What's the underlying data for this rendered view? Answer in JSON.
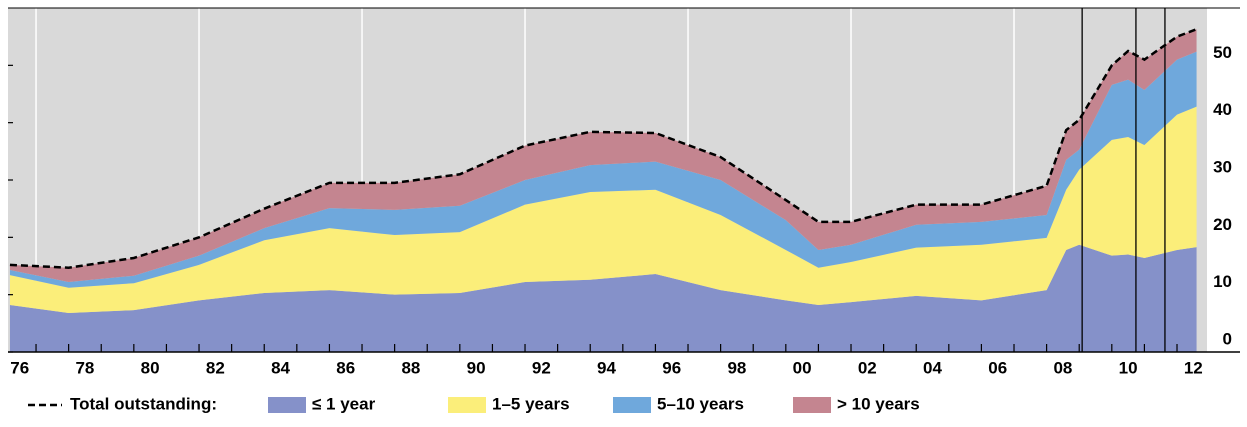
{
  "chart_data": {
    "type": "stacked-area",
    "x": [
      1976.2,
      1978,
      1980,
      1982,
      1984,
      1986,
      1988,
      1990,
      1992,
      1994,
      1996,
      1998,
      2000,
      2001,
      2002,
      2004,
      2006,
      2008,
      2008.6,
      2009,
      2010,
      2010.5,
      2011,
      2012,
      2012.6
    ],
    "series": [
      {
        "name": "≤ 1 year",
        "color": "#8591c9",
        "values": [
          8.2,
          6.8,
          7.3,
          9,
          10.3,
          10.8,
          10,
          10.3,
          12.2,
          12.6,
          13.6,
          10.8,
          9,
          8.2,
          8.7,
          9.8,
          9,
          10.8,
          17.8,
          18.7,
          16.8,
          17,
          16.4,
          17.8,
          18.3
        ]
      },
      {
        "name": "1–5 years",
        "color": "#fbee7a",
        "values": [
          5.2,
          4.4,
          4.7,
          6.2,
          9.2,
          10.8,
          10.4,
          10.6,
          13.5,
          15.3,
          14.7,
          13.1,
          8.8,
          6.5,
          7,
          8.4,
          9.7,
          9.1,
          10.5,
          13.1,
          20.2,
          20.5,
          19.7,
          23.6,
          24.5
        ]
      },
      {
        "name": "5–10 years",
        "color": "#6fa8dc",
        "values": [
          0.9,
          1.0,
          1.3,
          1.6,
          2.1,
          3.5,
          4.4,
          4.6,
          4.3,
          4.7,
          4.9,
          6.1,
          5.2,
          3.1,
          3,
          4,
          4,
          4,
          5.2,
          3.5,
          9.6,
          10,
          9.6,
          9.6,
          9.6
        ]
      },
      {
        "name": "> 10 years",
        "color": "#c48590",
        "values": [
          0.9,
          2.5,
          3.1,
          3.2,
          3.4,
          4.4,
          4.7,
          5.5,
          6,
          5.8,
          5.0,
          4,
          3.5,
          4.9,
          4,
          3.5,
          3,
          5.1,
          5.2,
          5.2,
          3.4,
          5,
          5.3,
          4,
          3.9
        ]
      }
    ],
    "total": {
      "name": "Total outstanding:",
      "color": "#000000",
      "values": [
        15.2,
        14.7,
        16.4,
        20,
        25,
        29.5,
        29.5,
        31,
        36,
        38.4,
        38.2,
        34,
        26.5,
        22.7,
        22.7,
        25.7,
        25.7,
        29,
        38.7,
        40.5,
        50,
        52.5,
        51,
        55,
        56.3
      ]
    },
    "xlim": [
      1976.14,
      2012.92
    ],
    "xticks": [
      {
        "value": 1976.5,
        "label": "76"
      },
      {
        "value": 1978.5,
        "label": "78"
      },
      {
        "value": 1980.5,
        "label": "80"
      },
      {
        "value": 1982.5,
        "label": "82"
      },
      {
        "value": 1984.5,
        "label": "84"
      },
      {
        "value": 1986.5,
        "label": "86"
      },
      {
        "value": 1988.5,
        "label": "88"
      },
      {
        "value": 1990.5,
        "label": "90"
      },
      {
        "value": 1992.5,
        "label": "92"
      },
      {
        "value": 1994.5,
        "label": "94"
      },
      {
        "value": 1996.5,
        "label": "96"
      },
      {
        "value": 1998.5,
        "label": "98"
      },
      {
        "value": 2000.5,
        "label": "00"
      },
      {
        "value": 2002.5,
        "label": "02"
      },
      {
        "value": 2004.5,
        "label": "04"
      },
      {
        "value": 2006.5,
        "label": "06"
      },
      {
        "value": 2008.5,
        "label": "08"
      },
      {
        "value": 2010.5,
        "label": "10"
      },
      {
        "value": 2012.5,
        "label": "12"
      }
    ],
    "xminorticks": [
      1977,
      1978,
      1979,
      1980,
      1981,
      1982,
      1983,
      1984,
      1985,
      1986,
      1987,
      1988,
      1989,
      1990,
      1991,
      1992,
      1993,
      1994,
      1995,
      1996,
      1997,
      1998,
      1999,
      2000,
      2001,
      2002,
      2003,
      2004,
      2005,
      2006,
      2007,
      2008,
      2009,
      2010,
      2011,
      2012
    ],
    "xgrid": [
      1977,
      1982,
      1987,
      1992,
      1997,
      2002,
      2007
    ],
    "vlines": [
      2009.09,
      2010.74,
      2011.63
    ],
    "ylim": [
      0,
      60
    ],
    "yticks": [
      0,
      10,
      20,
      30,
      40,
      50
    ]
  }
}
